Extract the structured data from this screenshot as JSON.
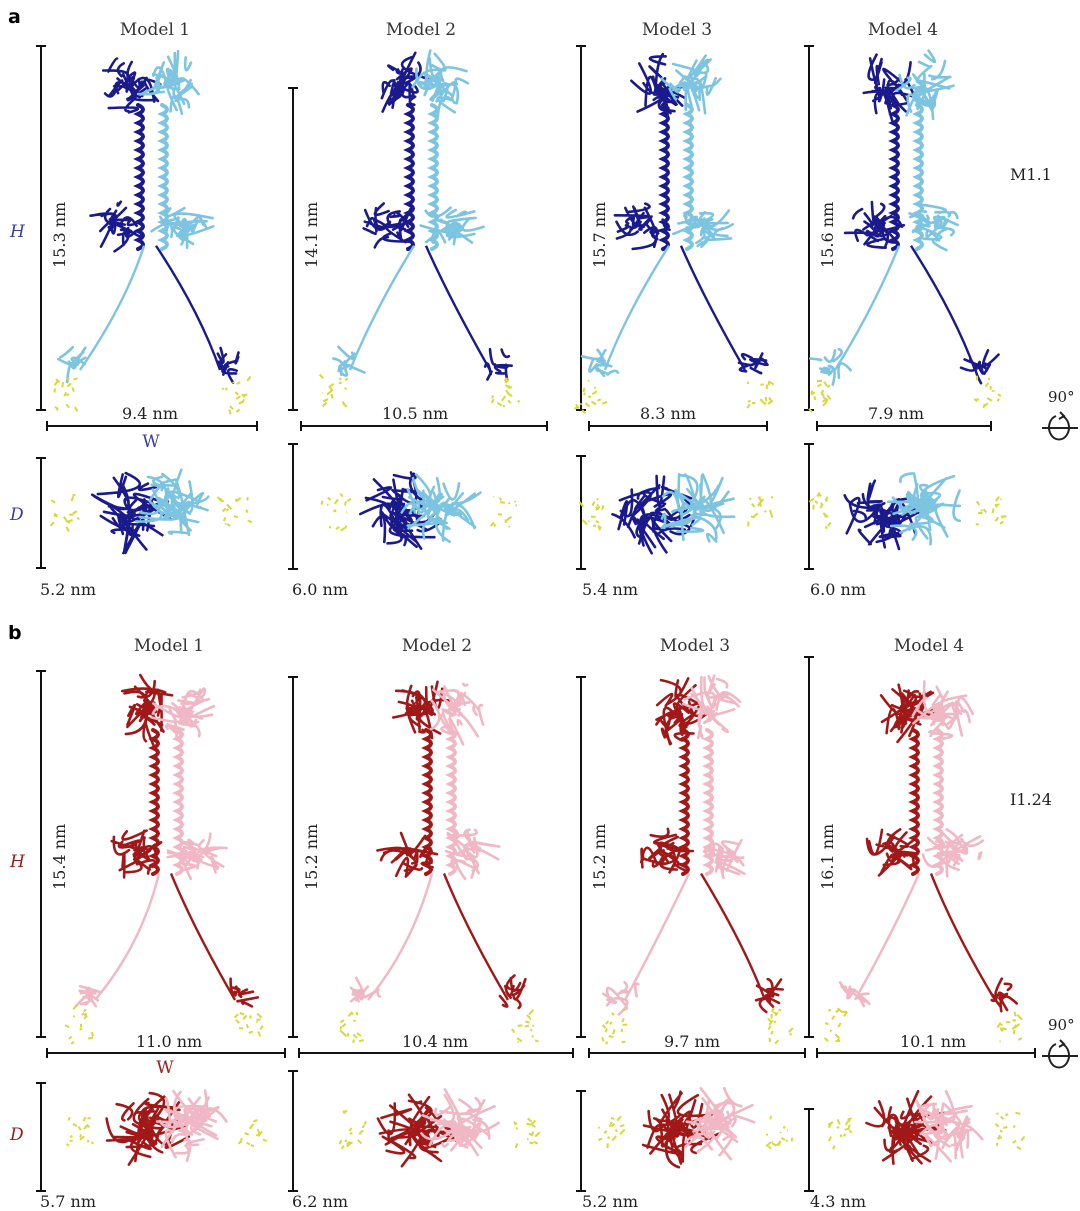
{
  "panel_a": {
    "letter": "a",
    "label": "M1.1",
    "axis_H": "H",
    "axis_D": "D",
    "axis_W": "W",
    "rotation": "90°",
    "models": [
      {
        "title": "Model 1",
        "height": "15.3 nm",
        "width": "9.4 nm",
        "depth": "5.2 nm"
      },
      {
        "title": "Model 2",
        "height": "14.1 nm",
        "width": "10.5 nm",
        "depth": "6.0 nm"
      },
      {
        "title": "Model 3",
        "height": "15.7 nm",
        "width": "8.3 nm",
        "depth": "5.4 nm"
      },
      {
        "title": "Model 4",
        "height": "15.6 nm",
        "width": "7.9 nm",
        "depth": "6.0 nm"
      }
    ],
    "colors": {
      "dark": "#1a1a8c",
      "light": "#7cc4e0",
      "ligand": "#e3e34a"
    }
  },
  "panel_b": {
    "letter": "b",
    "label": "I1.24",
    "axis_H": "H",
    "axis_D": "D",
    "axis_W": "W",
    "rotation": "90°",
    "models": [
      {
        "title": "Model 1",
        "height": "15.4 nm",
        "width": "11.0 nm",
        "depth": "5.7 nm"
      },
      {
        "title": "Model 2",
        "height": "15.2 nm",
        "width": "10.4 nm",
        "depth": "6.2 nm"
      },
      {
        "title": "Model 3",
        "height": "15.2 nm",
        "width": "9.7 nm",
        "depth": "5.2 nm"
      },
      {
        "title": "Model 4",
        "height": "16.1 nm",
        "width": "10.1 nm",
        "depth": "4.3 nm"
      }
    ],
    "colors": {
      "dark": "#a01818",
      "light": "#efb8c4",
      "ligand": "#e3e34a"
    }
  }
}
